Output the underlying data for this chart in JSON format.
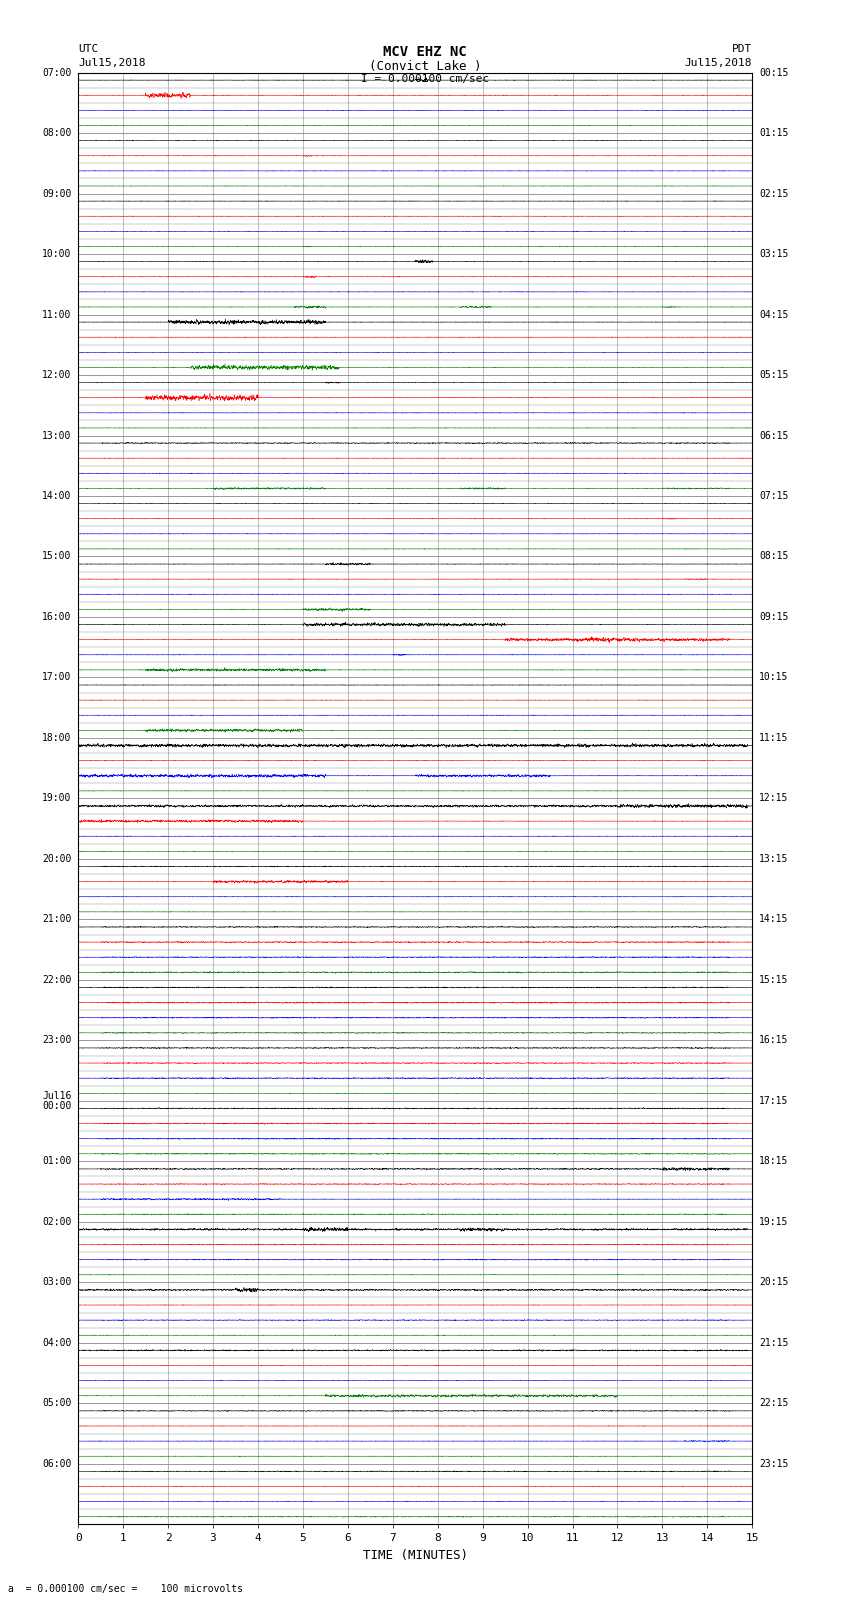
{
  "title_line1": "MCV EHZ NC",
  "title_line2": "(Convict Lake )",
  "title_scale": "I = 0.000100 cm/sec",
  "left_label": "UTC",
  "left_date": "Jul15,2018",
  "right_label": "PDT",
  "right_date": "Jul15,2018",
  "xlabel": "TIME (MINUTES)",
  "footer": "a  = 0.000100 cm/sec =    100 microvolts",
  "utc_times": [
    "07:00",
    "08:00",
    "09:00",
    "10:00",
    "11:00",
    "12:00",
    "13:00",
    "14:00",
    "15:00",
    "16:00",
    "17:00",
    "18:00",
    "19:00",
    "20:00",
    "21:00",
    "22:00",
    "23:00",
    "Jul16\n00:00",
    "01:00",
    "02:00",
    "03:00",
    "04:00",
    "05:00",
    "06:00"
  ],
  "pdt_times": [
    "00:15",
    "01:15",
    "02:15",
    "03:15",
    "04:15",
    "05:15",
    "06:15",
    "07:15",
    "08:15",
    "09:15",
    "10:15",
    "11:15",
    "12:15",
    "13:15",
    "14:15",
    "15:15",
    "16:15",
    "17:15",
    "18:15",
    "19:15",
    "20:15",
    "21:15",
    "22:15",
    "23:15"
  ],
  "num_hours": 24,
  "rows_per_hour": 4,
  "minutes": 15,
  "bg_color": "#ffffff",
  "grid_color": "#888888",
  "minor_grid_color": "#cccccc",
  "trace_colors": [
    "black",
    "red",
    "blue",
    "green"
  ],
  "seed": 12345
}
